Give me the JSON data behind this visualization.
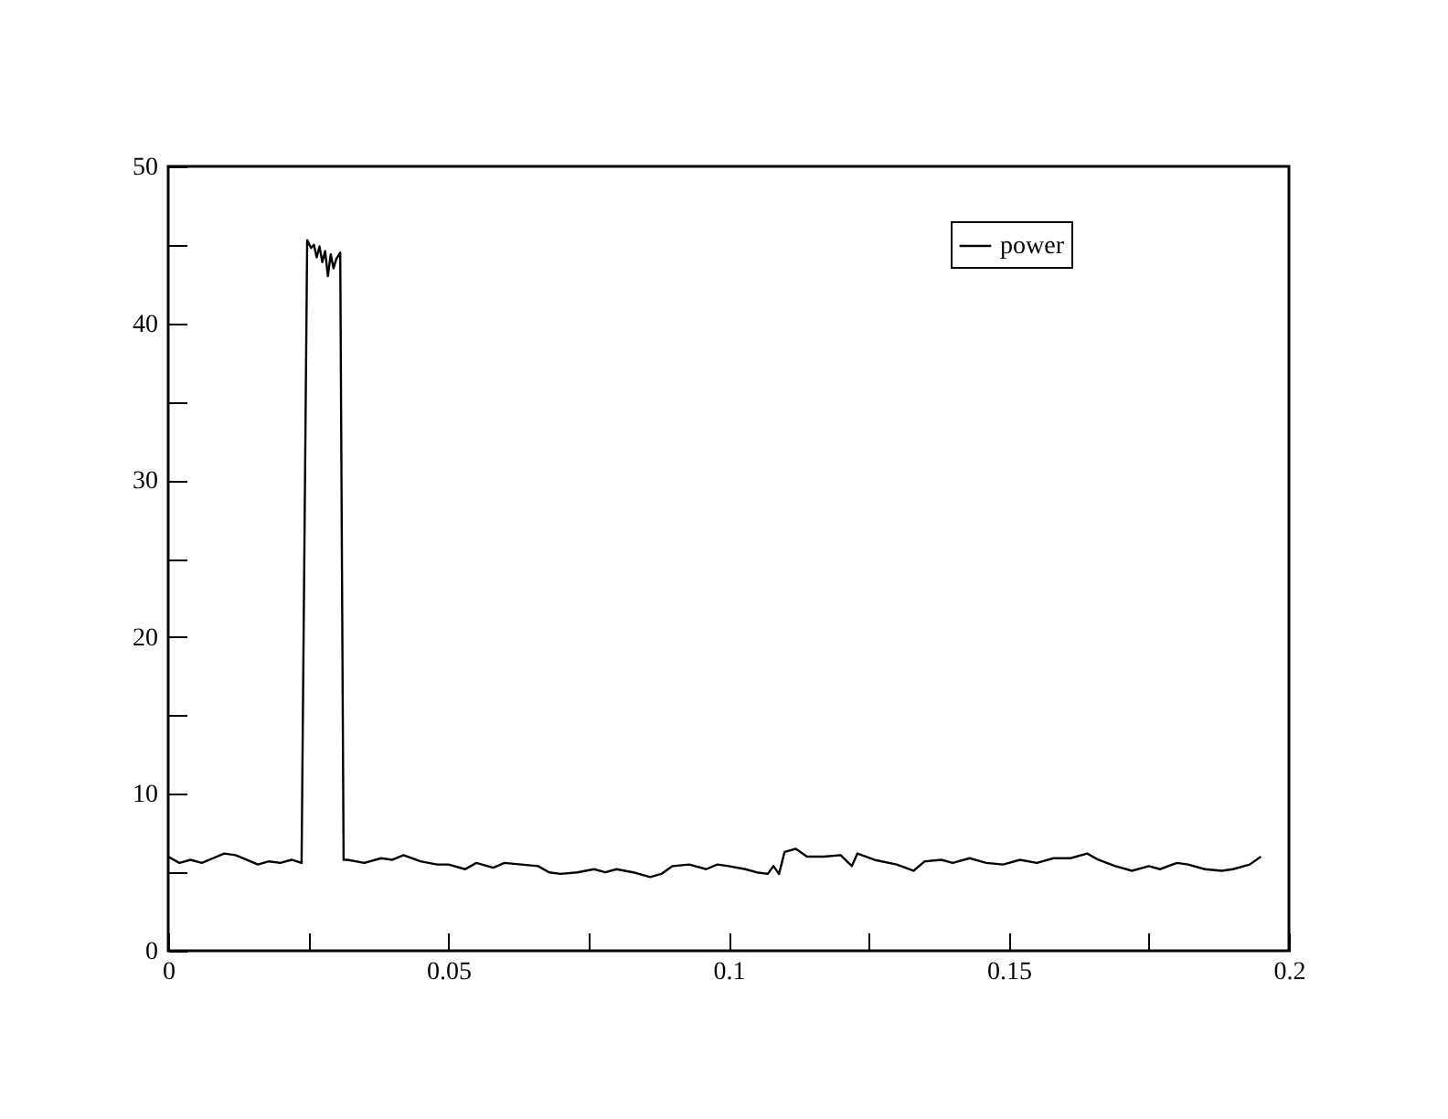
{
  "chart_data": {
    "type": "line",
    "x": [
      0,
      0.002,
      0.004,
      0.006,
      0.008,
      0.01,
      0.012,
      0.014,
      0.016,
      0.018,
      0.02,
      0.022,
      0.0238,
      0.0248,
      0.0255,
      0.026,
      0.0265,
      0.027,
      0.0275,
      0.028,
      0.0285,
      0.029,
      0.0295,
      0.03,
      0.0307,
      0.0313,
      0.032,
      0.035,
      0.038,
      0.04,
      0.042,
      0.045,
      0.048,
      0.05,
      0.053,
      0.055,
      0.058,
      0.06,
      0.063,
      0.066,
      0.068,
      0.07,
      0.073,
      0.076,
      0.078,
      0.08,
      0.083,
      0.086,
      0.088,
      0.09,
      0.093,
      0.096,
      0.098,
      0.1,
      0.103,
      0.105,
      0.107,
      0.108,
      0.109,
      0.11,
      0.112,
      0.114,
      0.117,
      0.12,
      0.122,
      0.123,
      0.126,
      0.13,
      0.133,
      0.135,
      0.138,
      0.14,
      0.143,
      0.146,
      0.149,
      0.152,
      0.155,
      0.158,
      0.161,
      0.164,
      0.166,
      0.169,
      0.172,
      0.175,
      0.177,
      0.18,
      0.182,
      0.185,
      0.188,
      0.19,
      0.193,
      0.195
    ],
    "series": [
      {
        "name": "power",
        "color": "#000000",
        "values": [
          6.0,
          5.6,
          5.8,
          5.6,
          5.9,
          6.2,
          6.1,
          5.8,
          5.5,
          5.7,
          5.6,
          5.8,
          5.6,
          45.3,
          44.8,
          45.0,
          44.2,
          44.9,
          43.9,
          44.6,
          43.0,
          44.4,
          43.5,
          44.1,
          44.5,
          5.8,
          5.8,
          5.6,
          5.9,
          5.8,
          6.1,
          5.7,
          5.5,
          5.5,
          5.2,
          5.6,
          5.3,
          5.6,
          5.5,
          5.4,
          5.0,
          4.9,
          5.0,
          5.2,
          5.0,
          5.2,
          5.0,
          4.7,
          4.9,
          5.4,
          5.5,
          5.2,
          5.5,
          5.4,
          5.2,
          5.0,
          4.9,
          5.4,
          4.9,
          6.3,
          6.5,
          6.0,
          6.0,
          6.1,
          5.4,
          6.2,
          5.8,
          5.5,
          5.1,
          5.7,
          5.8,
          5.6,
          5.9,
          5.6,
          5.5,
          5.8,
          5.6,
          5.9,
          5.9,
          6.2,
          5.8,
          5.4,
          5.1,
          5.4,
          5.2,
          5.6,
          5.5,
          5.2,
          5.1,
          5.2,
          5.5,
          6.0
        ]
      }
    ],
    "xlim": [
      0,
      0.2
    ],
    "xticks": [
      0,
      {
        "value": 0.025,
        "label": null
      },
      0.05,
      {
        "value": 0.075,
        "label": null
      },
      0.1,
      {
        "value": 0.125,
        "label": null
      },
      0.15,
      {
        "value": 0.175,
        "label": null
      },
      0.2
    ],
    "ylim": [
      0,
      50
    ],
    "yticks": [
      0,
      {
        "value": 5,
        "label": null
      },
      10,
      {
        "value": 15,
        "label": null
      },
      20,
      {
        "value": 25,
        "label": null
      },
      30,
      {
        "value": 35,
        "label": null
      },
      40,
      {
        "value": 45,
        "label": null
      },
      50
    ],
    "grid": false,
    "legend": "top right",
    "line_style": "solid",
    "marker": "none"
  }
}
